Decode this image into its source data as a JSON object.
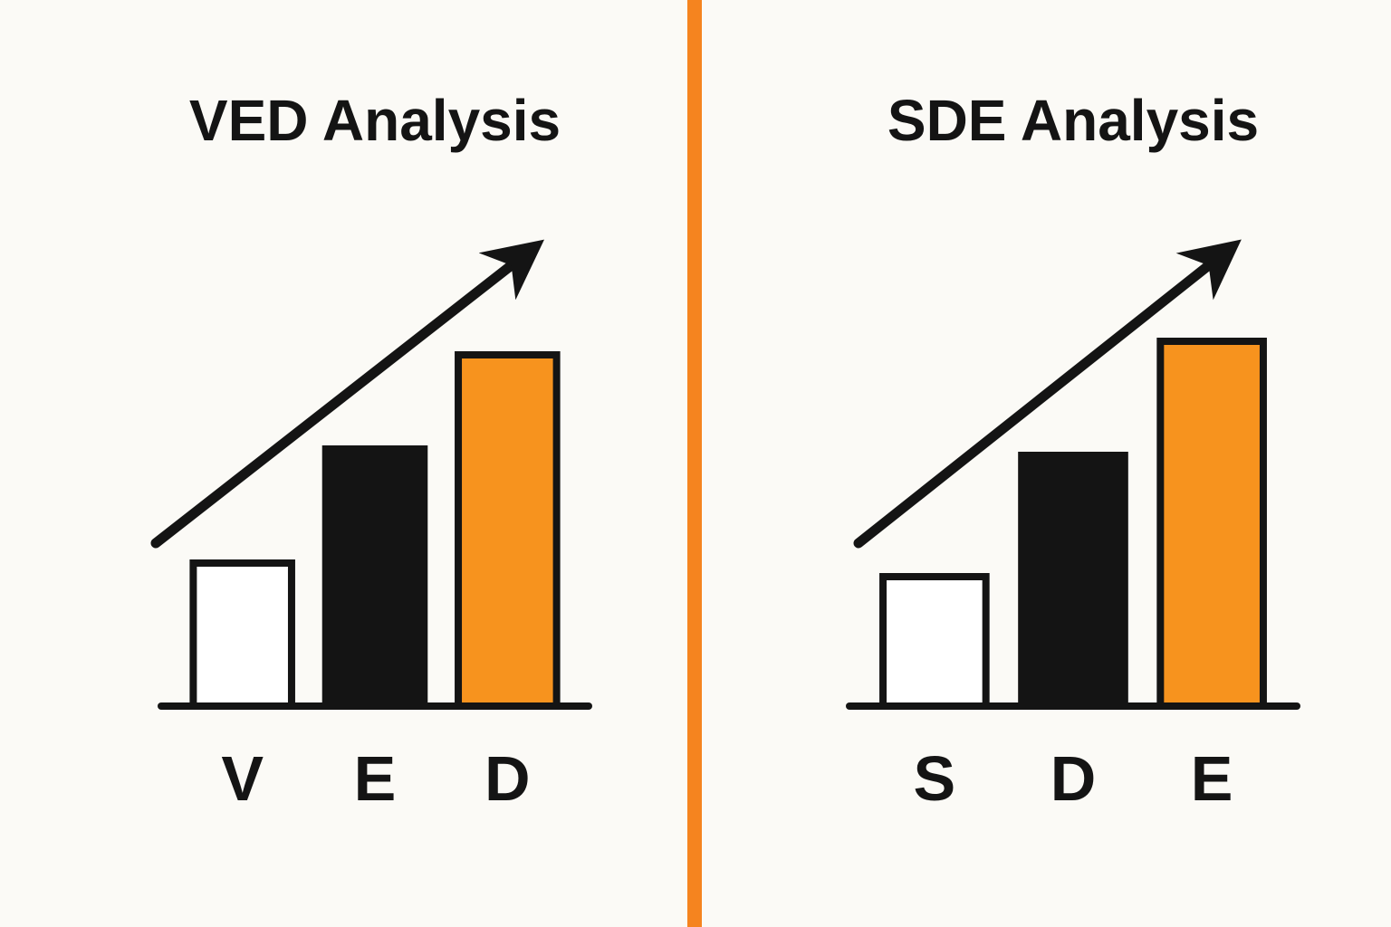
{
  "chart_data": [
    {
      "type": "bar",
      "title": "VED Analysis",
      "categories": [
        "V",
        "E",
        "D"
      ],
      "values": [
        158,
        284,
        388
      ],
      "colors": [
        "#ffffff",
        "#141414",
        "#f7931e"
      ],
      "ylim": [
        0,
        420
      ]
    },
    {
      "type": "bar",
      "title": "SDE Analysis",
      "categories": [
        "S",
        "D",
        "E"
      ],
      "values": [
        143,
        277,
        403
      ],
      "colors": [
        "#ffffff",
        "#141414",
        "#f7931e"
      ],
      "ylim": [
        0,
        420
      ]
    }
  ]
}
